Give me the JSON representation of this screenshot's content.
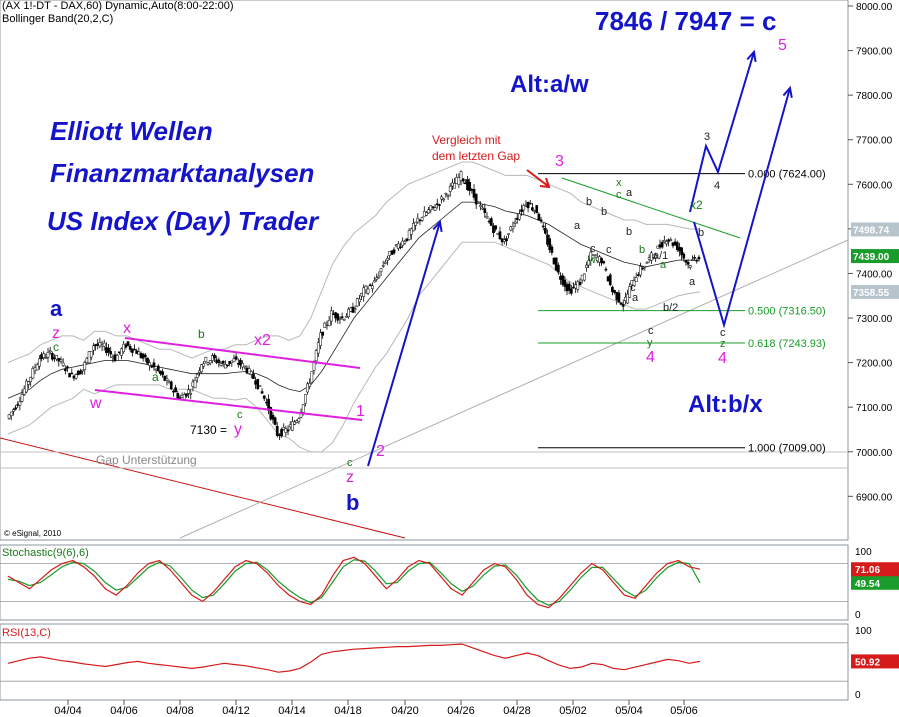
{
  "header": {
    "symbol_line": "(AX 1!-DT - DAX,60) Dynamic,Auto(8:00-22:00)",
    "indicator_line": "Bollinger Band(20,2,C)"
  },
  "branding": {
    "line1": "Elliott Wellen",
    "line2": "Finanzmarktanalysen",
    "line3": "US Index (Day) Trader",
    "copyright": "© eSignal, 2010"
  },
  "annotations": {
    "target": "7846 / 7947 = c",
    "alt_aw": "Alt:a/w",
    "alt_bx": "Alt:b/x",
    "gap_compare": "Vergleich mit\ndem letzten Gap",
    "gap_support": "Gap Unterstützung",
    "level_7130": "7130 ="
  },
  "fib_levels": [
    {
      "label": "0.000 (7624.00)",
      "value": 7624.0
    },
    {
      "label": "0.500 (7316.50)",
      "value": 7316.5
    },
    {
      "label": "0.618 (7243.93)",
      "value": 7243.93
    },
    {
      "label": "1.000 (7009.00)",
      "value": 7009.0
    }
  ],
  "price_axis": {
    "ticks": [
      "8000.00",
      "7900.00",
      "7800.00",
      "7700.00",
      "7600.00",
      "7500.00",
      "7400.00",
      "7300.00",
      "7200.00",
      "7100.00",
      "7000.00",
      "6900.00"
    ],
    "tags": [
      {
        "label": "7498.74",
        "value": 7498.74,
        "color": "#b8c4cc"
      },
      {
        "label": "7439.00",
        "value": 7439.0,
        "color": "#1a9c2a"
      },
      {
        "label": "7358.55",
        "value": 7358.55,
        "color": "#b8c4cc"
      }
    ]
  },
  "x_axis": {
    "labels": [
      "04/04",
      "04/06",
      "04/08",
      "04/12",
      "04/14",
      "04/18",
      "04/20",
      "04/26",
      "04/28",
      "05/02",
      "05/04",
      "05/06"
    ]
  },
  "stochastic": {
    "title": "Stochastic(9(6),6)",
    "ticks": [
      "100",
      "50",
      "0"
    ],
    "tags": [
      {
        "label": "71.06",
        "color": "#d61b1b"
      },
      {
        "label": "49.54",
        "color": "#1a9c2a"
      }
    ]
  },
  "rsi": {
    "title": "RSI(13,C)",
    "ticks": [
      "100",
      "50",
      "0"
    ],
    "tags": [
      {
        "label": "50.92",
        "color": "#d61b1b"
      }
    ]
  },
  "wave_labels": [
    {
      "text": "a",
      "color": "#1414c8",
      "big": true
    },
    {
      "text": "z",
      "color": "#e020e0"
    },
    {
      "text": "c",
      "color": "#1a7a1a"
    },
    {
      "text": "x",
      "color": "#e020e0"
    },
    {
      "text": "w",
      "color": "#e020e0"
    },
    {
      "text": "b",
      "color": "#1a7a1a"
    },
    {
      "text": "x2",
      "color": "#e020e0"
    },
    {
      "text": "a",
      "color": "#1a7a1a"
    },
    {
      "text": "c",
      "color": "#1a7a1a"
    },
    {
      "text": "y",
      "color": "#e020e0"
    },
    {
      "text": "1",
      "color": "#e020e0"
    },
    {
      "text": "2",
      "color": "#e020e0"
    },
    {
      "text": "c",
      "color": "#1a7a1a"
    },
    {
      "text": "z",
      "color": "#e020e0"
    },
    {
      "text": "b",
      "color": "#1414c8",
      "big": true
    },
    {
      "text": "3",
      "color": "#e020e0"
    },
    {
      "text": "x",
      "color": "#1a7a1a"
    },
    {
      "text": "c",
      "color": "#1a7a1a"
    },
    {
      "text": "w",
      "color": "#1a7a1a"
    },
    {
      "text": "4",
      "color": "#e020e0"
    },
    {
      "text": "y",
      "color": "#1a7a1a"
    },
    {
      "text": "x2",
      "color": "#1a7a1a"
    },
    {
      "text": "5",
      "color": "#e020e0"
    },
    {
      "text": "3",
      "color": "#222"
    },
    {
      "text": "4",
      "color": "#222"
    },
    {
      "text": "c",
      "color": "#222"
    },
    {
      "text": "z",
      "color": "#1a7a1a"
    },
    {
      "text": "4",
      "color": "#e020e0"
    },
    {
      "text": "b",
      "color": "#222"
    },
    {
      "text": "a",
      "color": "#222"
    },
    {
      "text": "a/1",
      "color": "#222"
    },
    {
      "text": "b/2",
      "color": "#222"
    },
    {
      "text": "b",
      "color": "#1a7a1a"
    },
    {
      "text": "a",
      "color": "#1a7a1a"
    },
    {
      "text": "c",
      "color": "#222"
    },
    {
      "text": "b",
      "color": "#222"
    },
    {
      "text": "a",
      "color": "#222"
    },
    {
      "text": "c",
      "color": "#222"
    },
    {
      "text": "b",
      "color": "#222"
    },
    {
      "text": "c",
      "color": "#222"
    },
    {
      "text": "a",
      "color": "#222"
    },
    {
      "text": "b",
      "color": "#222"
    },
    {
      "text": "c",
      "color": "#222"
    },
    {
      "text": "a",
      "color": "#222"
    }
  ],
  "chart_data": {
    "type": "candlestick",
    "ylim": [
      6820,
      8000
    ],
    "x": [
      "04/04",
      "04/06",
      "04/08",
      "04/12",
      "04/14",
      "04/18",
      "04/20",
      "04/26",
      "04/28",
      "05/02",
      "05/04",
      "05/06"
    ],
    "close_path": [
      7075,
      7110,
      7160,
      7210,
      7220,
      7200,
      7170,
      7185,
      7240,
      7235,
      7210,
      7240,
      7225,
      7200,
      7180,
      7150,
      7120,
      7140,
      7200,
      7210,
      7195,
      7205,
      7190,
      7160,
      7110,
      7040,
      7050,
      7080,
      7160,
      7260,
      7310,
      7300,
      7320,
      7360,
      7380,
      7430,
      7460,
      7480,
      7520,
      7540,
      7560,
      7590,
      7620,
      7580,
      7540,
      7500,
      7470,
      7520,
      7560,
      7540,
      7470,
      7400,
      7360,
      7380,
      7440,
      7430,
      7360,
      7330,
      7390,
      7420,
      7450,
      7480,
      7460,
      7420,
      7439
    ],
    "stoch_k": [
      60,
      50,
      40,
      55,
      70,
      80,
      85,
      75,
      60,
      40,
      30,
      45,
      65,
      80,
      85,
      70,
      50,
      30,
      20,
      35,
      55,
      75,
      85,
      80,
      65,
      45,
      30,
      20,
      15,
      30,
      60,
      85,
      90,
      80,
      60,
      40,
      55,
      75,
      85,
      80,
      60,
      40,
      30,
      50,
      70,
      80,
      75,
      55,
      30,
      15,
      10,
      25,
      45,
      65,
      80,
      70,
      50,
      30,
      25,
      45,
      65,
      80,
      85,
      75,
      71.06
    ],
    "stoch_d": [
      55,
      52,
      45,
      50,
      62,
      75,
      82,
      80,
      68,
      50,
      38,
      42,
      58,
      74,
      82,
      76,
      58,
      38,
      26,
      30,
      48,
      68,
      80,
      82,
      70,
      52,
      38,
      26,
      18,
      26,
      50,
      75,
      86,
      84,
      68,
      48,
      50,
      68,
      80,
      82,
      66,
      48,
      36,
      44,
      62,
      76,
      78,
      62,
      40,
      22,
      14,
      20,
      38,
      58,
      74,
      74,
      56,
      38,
      28,
      38,
      58,
      74,
      82,
      80,
      49.54
    ],
    "rsi": [
      48,
      52,
      56,
      58,
      55,
      52,
      50,
      47,
      45,
      43,
      46,
      49,
      51,
      48,
      46,
      44,
      42,
      40,
      42,
      45,
      48,
      46,
      44,
      41,
      38,
      34,
      36,
      40,
      50,
      62,
      66,
      68,
      70,
      71,
      72,
      73,
      74,
      74,
      75,
      76,
      76,
      77,
      78,
      72,
      66,
      60,
      56,
      60,
      64,
      60,
      52,
      45,
      40,
      42,
      48,
      46,
      40,
      38,
      42,
      46,
      50,
      54,
      52,
      48,
      50.92
    ],
    "bollinger_upper": [
      7200,
      7210,
      7220,
      7240,
      7250,
      7260,
      7260,
      7250,
      7270,
      7270,
      7260,
      7260,
      7250,
      7240,
      7230,
      7230,
      7220,
      7210,
      7220,
      7230,
      7230,
      7240,
      7240,
      7250,
      7260,
      7260,
      7250,
      7260,
      7300,
      7360,
      7420,
      7460,
      7490,
      7510,
      7530,
      7560,
      7580,
      7600,
      7610,
      7620,
      7630,
      7640,
      7650,
      7650,
      7640,
      7630,
      7620,
      7620,
      7620,
      7610,
      7600,
      7590,
      7580,
      7560,
      7550,
      7540,
      7530,
      7520,
      7520,
      7510,
      7510,
      7510,
      7505,
      7500,
      7498.74
    ],
    "bollinger_mid": [
      7120,
      7130,
      7140,
      7160,
      7175,
      7185,
      7190,
      7195,
      7200,
      7205,
      7205,
      7205,
      7200,
      7195,
      7190,
      7185,
      7180,
      7175,
      7175,
      7175,
      7175,
      7178,
      7180,
      7175,
      7165,
      7150,
      7140,
      7135,
      7150,
      7180,
      7220,
      7260,
      7300,
      7330,
      7360,
      7390,
      7420,
      7450,
      7480,
      7500,
      7520,
      7540,
      7560,
      7560,
      7555,
      7550,
      7540,
      7535,
      7530,
      7520,
      7510,
      7495,
      7480,
      7465,
      7455,
      7445,
      7435,
      7425,
      7420,
      7415,
      7420,
      7425,
      7430,
      7430,
      7428
    ],
    "bollinger_lower": [
      7040,
      7050,
      7060,
      7080,
      7100,
      7110,
      7120,
      7140,
      7130,
      7140,
      7150,
      7150,
      7150,
      7150,
      7150,
      7140,
      7140,
      7140,
      7130,
      7120,
      7120,
      7116,
      7120,
      7100,
      7070,
      7040,
      7030,
      7010,
      7000,
      7000,
      7020,
      7060,
      7110,
      7150,
      7190,
      7220,
      7260,
      7300,
      7350,
      7380,
      7410,
      7440,
      7470,
      7470,
      7470,
      7470,
      7460,
      7450,
      7440,
      7430,
      7420,
      7400,
      7380,
      7370,
      7360,
      7350,
      7340,
      7330,
      7320,
      7320,
      7330,
      7340,
      7350,
      7355,
      7358.55
    ]
  }
}
